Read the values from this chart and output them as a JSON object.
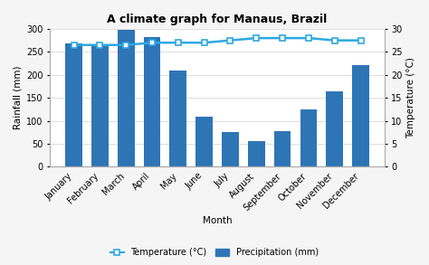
{
  "title": "A climate graph for Manaus, Brazil",
  "months": [
    "January",
    "February",
    "March",
    "April",
    "May",
    "June",
    "July",
    "August",
    "September",
    "October",
    "November",
    "December"
  ],
  "precipitation": [
    268,
    263,
    297,
    282,
    210,
    109,
    75,
    55,
    77,
    125,
    165,
    222
  ],
  "temperature": [
    26.5,
    26.5,
    26.5,
    27.0,
    27.0,
    27.0,
    27.5,
    28.0,
    28.0,
    28.0,
    27.5,
    27.5
  ],
  "bar_color": "#2E75B6",
  "line_color": "#2DA8E0",
  "marker_facecolor": "white",
  "marker_edgecolor": "#2DA8E0",
  "ylabel_left": "Rainfall (mm)",
  "ylabel_right": "Temperature (°C)",
  "xlabel": "Month",
  "ylim_left": [
    0,
    300
  ],
  "ylim_right": [
    0,
    30
  ],
  "yticks_left": [
    0,
    50,
    100,
    150,
    200,
    250,
    300
  ],
  "yticks_right": [
    0,
    5,
    10,
    15,
    20,
    25,
    30
  ],
  "legend_temp": "Temperature (°C)",
  "legend_precip": "Precipitation (mm)",
  "fig_facecolor": "#f5f5f5",
  "plot_facecolor": "#ffffff",
  "grid_color": "#d8d8d8",
  "title_fontsize": 9,
  "label_fontsize": 7.5,
  "tick_fontsize": 7
}
